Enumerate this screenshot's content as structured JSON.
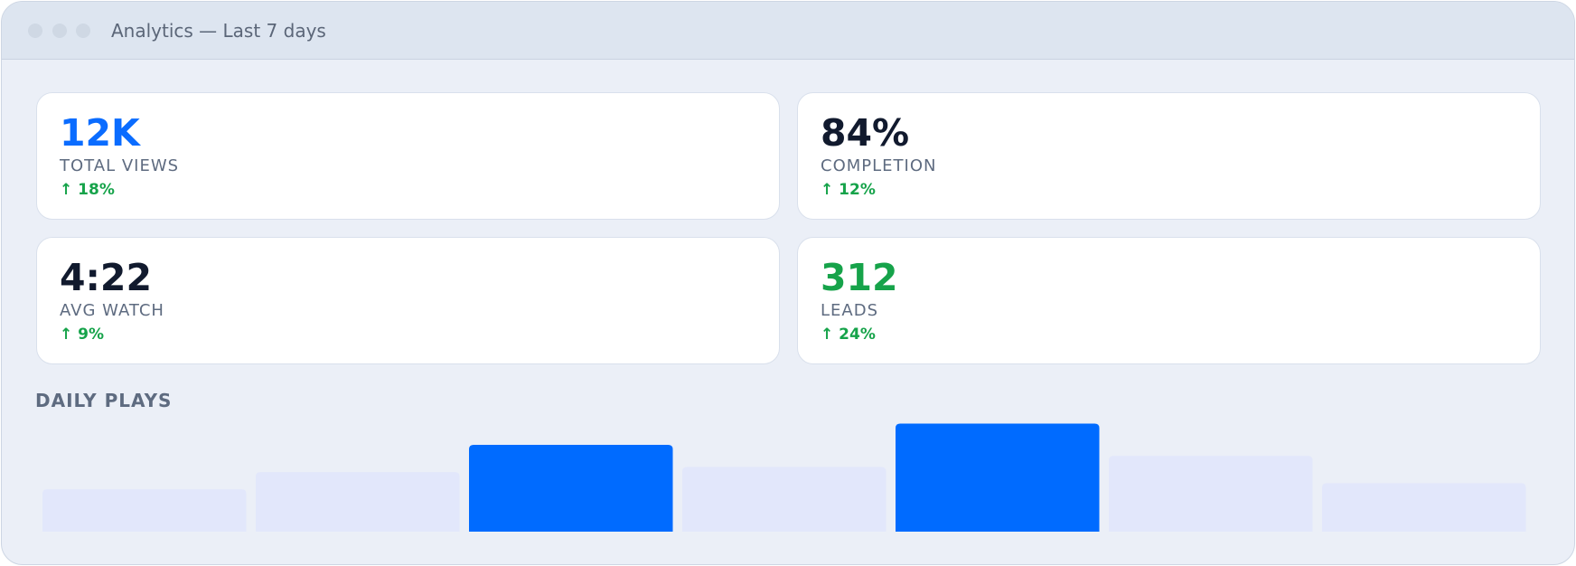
{
  "window": {
    "title": "Analytics — Last 7 days"
  },
  "stats": [
    {
      "value": "12K",
      "label": "TOTAL VIEWS",
      "change": "↑ 18%",
      "color": "#0a6cff"
    },
    {
      "value": "84%",
      "label": "COMPLETION",
      "change": "↑ 12%",
      "color": "#111a2e"
    },
    {
      "value": "4:22",
      "label": "AVG WATCH",
      "change": "↑ 9%",
      "color": "#111a2e"
    },
    {
      "value": "312",
      "label": "LEADS",
      "change": "↑ 24%",
      "color": "#16a34a"
    }
  ],
  "chart_data": {
    "type": "bar",
    "title": "DAILY PLAYS",
    "categories": [
      null,
      null,
      null,
      null,
      null,
      null,
      null
    ],
    "values": [
      42,
      59,
      86,
      64,
      107,
      75,
      48
    ],
    "colors": [
      "#e2e7fb",
      "#e2e7fb",
      "#006bff",
      "#e2e7fb",
      "#006bff",
      "#e2e7fb",
      "#e2e7fb"
    ],
    "ylim": [
      0,
      120
    ]
  }
}
